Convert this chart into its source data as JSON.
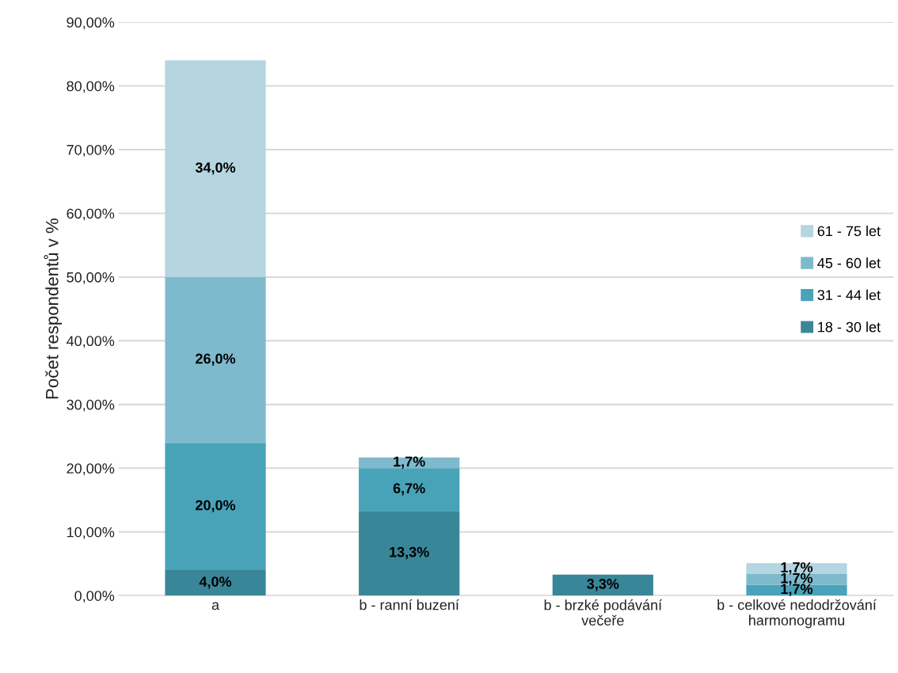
{
  "chart_data": {
    "type": "bar",
    "stacked": true,
    "ylabel": "Počet respondentů v %",
    "categories": [
      "a",
      "b - ranní buzení",
      "b - brzké podávání\nvečeře",
      "b - celkové nedodržování\nharmonogramu"
    ],
    "series": [
      {
        "name": "18 - 30 let",
        "color": "#3a8699",
        "values": [
          4.0,
          13.3,
          3.3,
          0
        ],
        "value_labels": [
          "4,0%",
          "13,3%",
          "3,3%",
          null
        ]
      },
      {
        "name": "31 - 44 let",
        "color": "#48a3b9",
        "values": [
          20.0,
          6.7,
          0,
          1.7
        ],
        "value_labels": [
          "20,0%",
          "6,7%",
          null,
          "1,7%"
        ]
      },
      {
        "name": "45 - 60 let",
        "color": "#7ebacd",
        "values": [
          26.0,
          1.7,
          0,
          1.7
        ],
        "value_labels": [
          "26,0%",
          "1,7%",
          null,
          "1,7%"
        ]
      },
      {
        "name": "61 - 75 let",
        "color": "#b5d5e0",
        "values": [
          34.0,
          0,
          0,
          1.7
        ],
        "value_labels": [
          "34,0%",
          null,
          null,
          "1,7%"
        ]
      }
    ],
    "ylim": [
      0,
      90
    ],
    "yticks": [
      {
        "value": 0,
        "label": "0,00%"
      },
      {
        "value": 10,
        "label": "10,00%"
      },
      {
        "value": 20,
        "label": "20,00%"
      },
      {
        "value": 30,
        "label": "30,00%"
      },
      {
        "value": 40,
        "label": "40,00%"
      },
      {
        "value": 50,
        "label": "50,00%"
      },
      {
        "value": 60,
        "label": "60,00%"
      },
      {
        "value": 70,
        "label": "70,00%"
      },
      {
        "value": 80,
        "label": "80,00%"
      },
      {
        "value": 90,
        "label": "90,00%"
      }
    ],
    "grid": "y",
    "legend": "right"
  }
}
